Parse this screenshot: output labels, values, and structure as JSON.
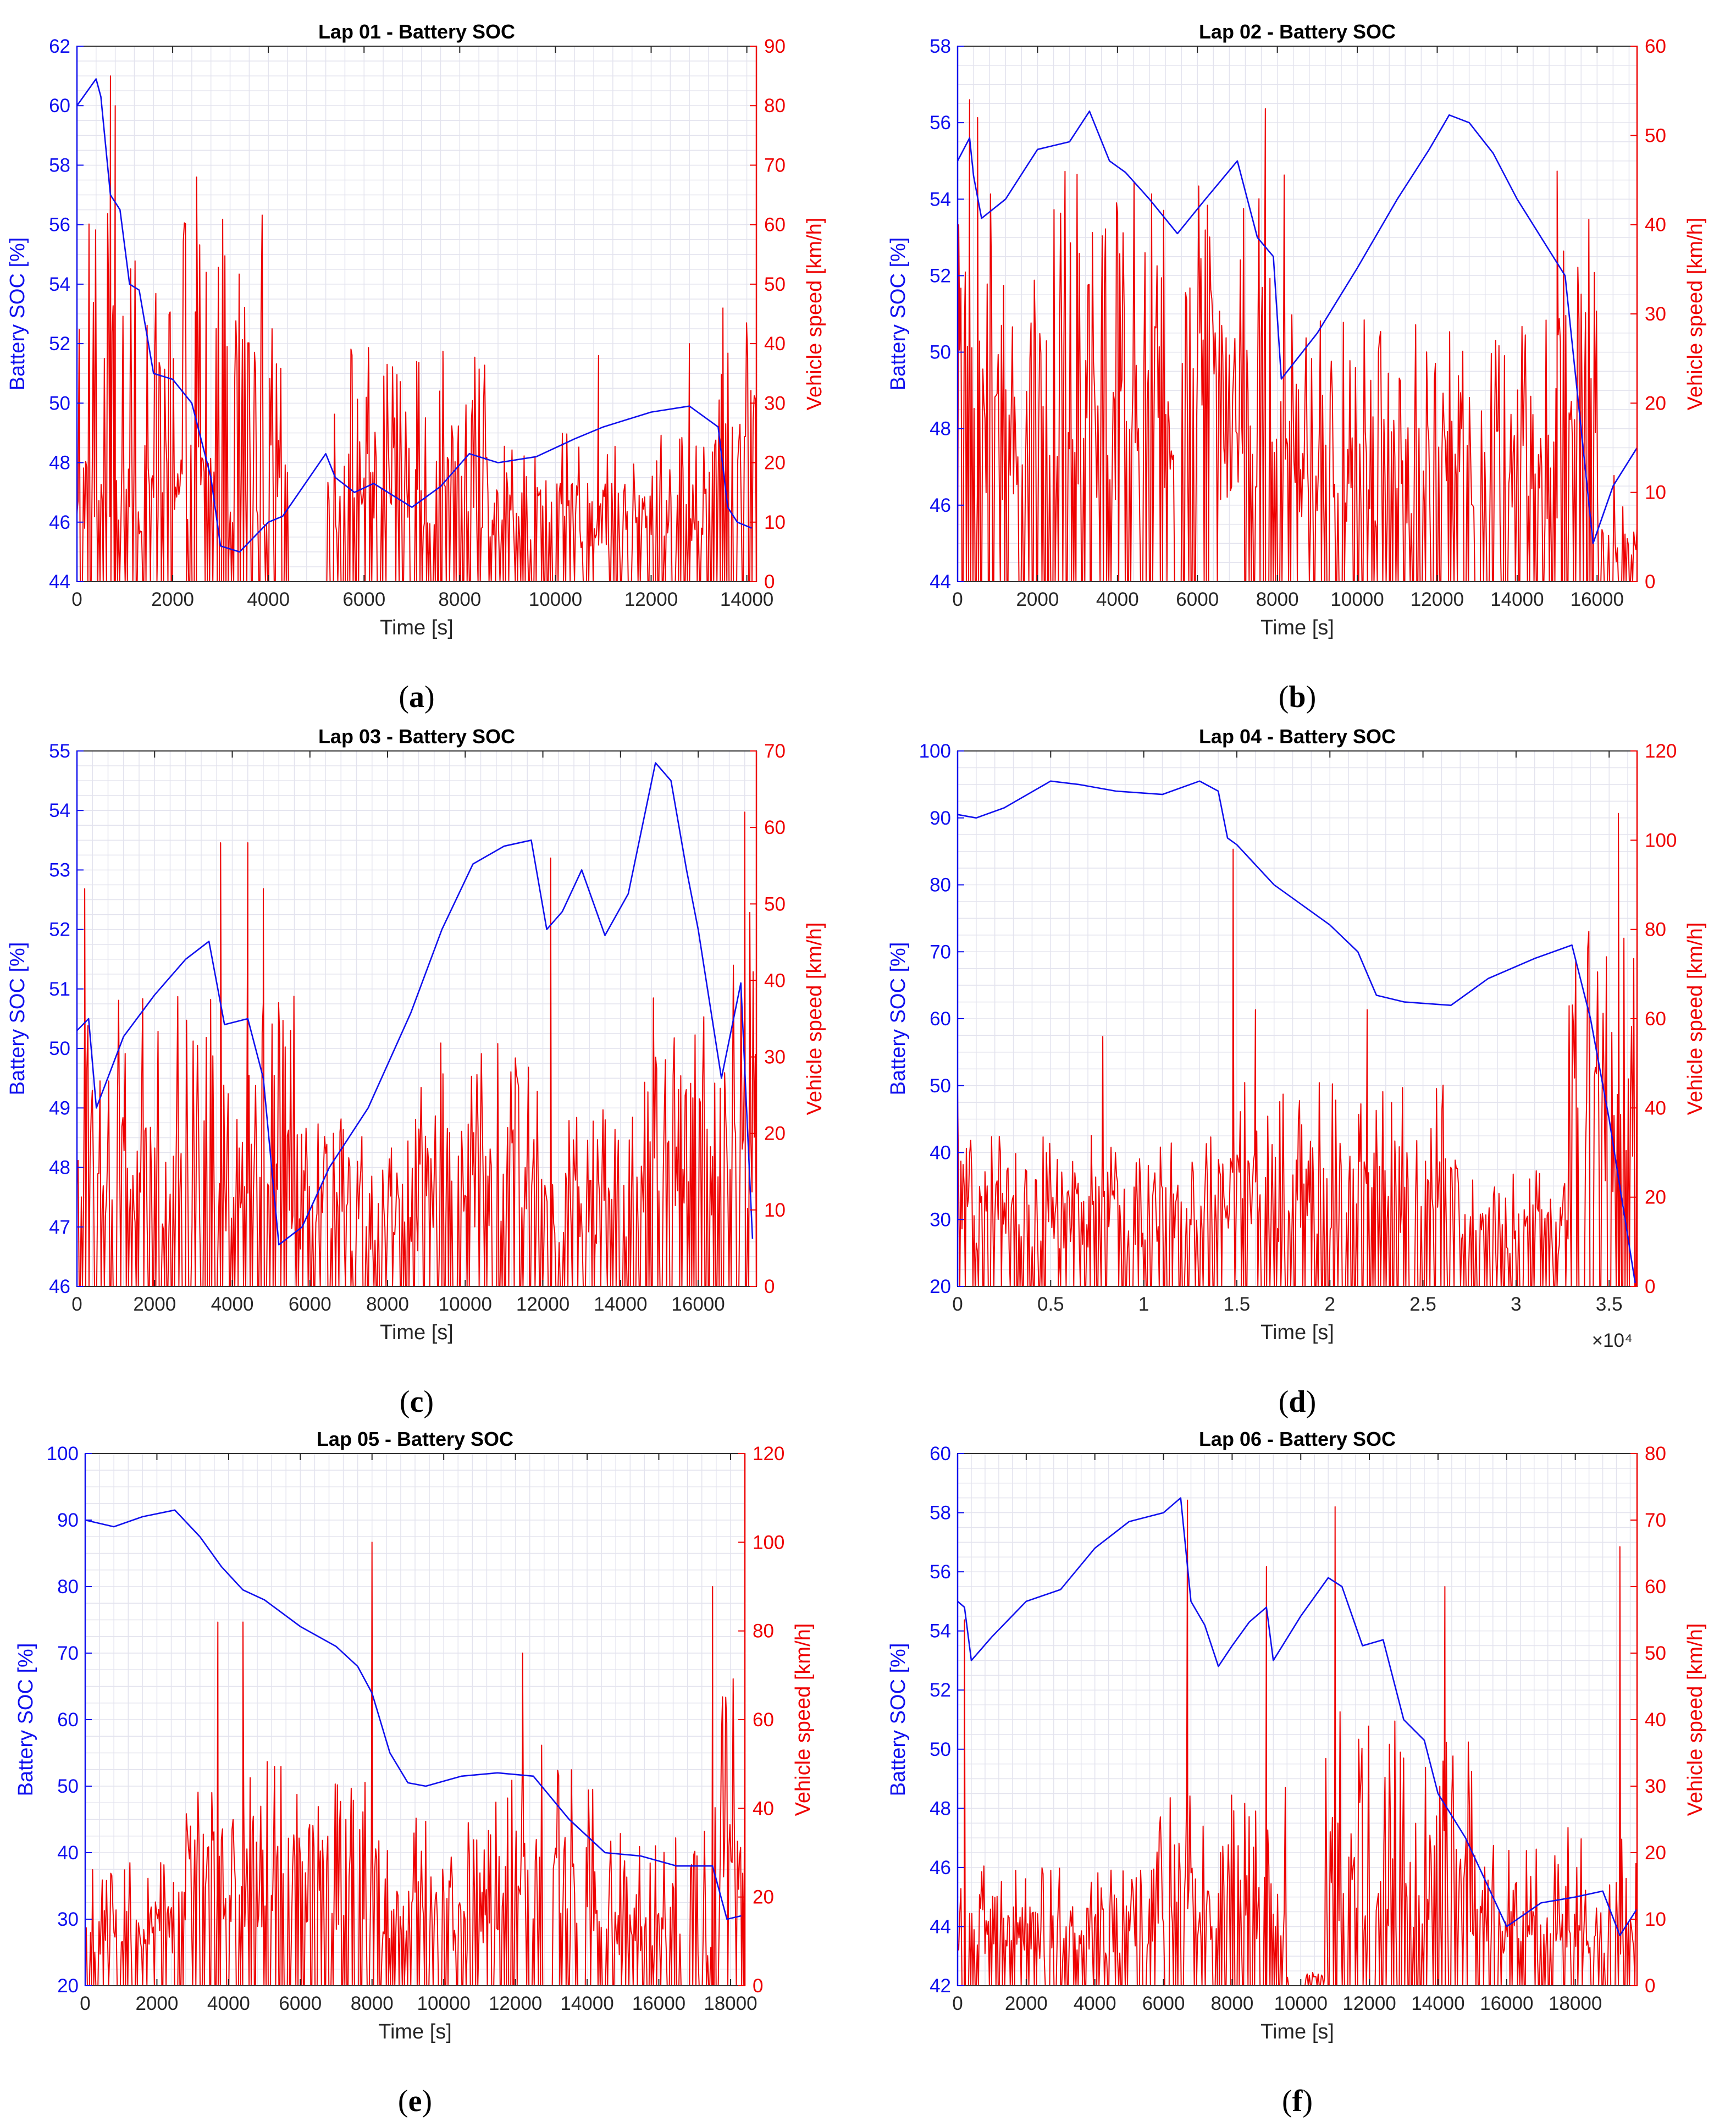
{
  "colors": {
    "soc": "#1010ee",
    "speed": "#ee0000",
    "grid": "#e3e3ee",
    "frame": "#333333"
  },
  "chart_data": [
    {
      "type": "line",
      "label": "a",
      "title": "Lap 01 - Battery SOC",
      "xlabel": "Time [s]",
      "ylabel_left": "Battery SOC [%]",
      "ylabel_right": "Vehicle speed [km/h]",
      "xlim": [
        0,
        14200
      ],
      "ylim_left": [
        44,
        62
      ],
      "ylim_right": [
        0,
        90
      ],
      "xticks": [
        0,
        2000,
        4000,
        6000,
        8000,
        10000,
        12000,
        14000
      ],
      "xtick_labels": [
        "0",
        "2000",
        "4000",
        "6000",
        "8000",
        "10000",
        "12000",
        "14000"
      ],
      "yticks_left": [
        44,
        46,
        48,
        50,
        52,
        54,
        56,
        58,
        60,
        62
      ],
      "yticks_right": [
        0,
        10,
        20,
        30,
        40,
        50,
        60,
        70,
        80,
        90
      ],
      "x_multiplier": "",
      "grid": true,
      "soc": {
        "x": [
          0,
          400,
          500,
          700,
          900,
          1100,
          1300,
          1600,
          2000,
          2400,
          2800,
          3000,
          3400,
          4000,
          4300,
          5200,
          5400,
          5800,
          6200,
          6600,
          7000,
          7600,
          8200,
          8800,
          9600,
          10400,
          11000,
          12000,
          12800,
          13400,
          13600,
          13800,
          14100
        ],
        "y": [
          60.0,
          60.9,
          60.3,
          57.0,
          56.5,
          54.0,
          53.8,
          51.0,
          50.8,
          50.0,
          47.5,
          45.2,
          45.0,
          46.0,
          46.2,
          48.3,
          47.5,
          47.0,
          47.3,
          46.9,
          46.5,
          47.2,
          48.3,
          48.0,
          48.2,
          48.8,
          49.2,
          49.7,
          49.9,
          49.2,
          46.5,
          46.0,
          45.8
        ]
      },
      "speed": {
        "segments": [
          [
            0,
            4400,
            16,
            62
          ],
          [
            5200,
            8700,
            15,
            40
          ],
          [
            8700,
            13300,
            11,
            25
          ],
          [
            13300,
            14200,
            26,
            44
          ]
        ],
        "peaks": [
          [
            700,
            85
          ],
          [
            800,
            80
          ],
          [
            2500,
            68
          ],
          [
            2700,
            52
          ],
          [
            6100,
            35
          ],
          [
            7100,
            37
          ],
          [
            10900,
            38
          ],
          [
            12800,
            40
          ],
          [
            13500,
            46
          ]
        ]
      }
    },
    {
      "type": "line",
      "label": "b",
      "title": "Lap 02 - Battery SOC",
      "xlabel": "Time [s]",
      "ylabel_left": "Battery SOC [%]",
      "ylabel_right": "Vehicle speed [km/h]",
      "xlim": [
        0,
        17000
      ],
      "ylim_left": [
        44,
        58
      ],
      "ylim_right": [
        0,
        60
      ],
      "xticks": [
        0,
        2000,
        4000,
        6000,
        8000,
        10000,
        12000,
        14000,
        16000
      ],
      "xtick_labels": [
        "0",
        "2000",
        "4000",
        "6000",
        "8000",
        "10000",
        "12000",
        "14000",
        "16000"
      ],
      "yticks_left": [
        44,
        46,
        48,
        50,
        52,
        54,
        56,
        58
      ],
      "yticks_right": [
        0,
        10,
        20,
        30,
        40,
        50,
        60
      ],
      "x_multiplier": "",
      "grid": true,
      "soc": {
        "x": [
          0,
          300,
          400,
          600,
          1200,
          2000,
          2800,
          3300,
          3800,
          4200,
          4800,
          5500,
          6200,
          7000,
          7500,
          7900,
          8100,
          9000,
          10000,
          11000,
          11800,
          12300,
          12800,
          13400,
          14000,
          14600,
          15200,
          15900,
          16400,
          17000
        ],
        "y": [
          55.0,
          55.6,
          54.6,
          53.5,
          54.0,
          55.3,
          55.5,
          56.3,
          55.0,
          54.7,
          54.0,
          53.1,
          54.0,
          55.0,
          53.0,
          52.5,
          49.3,
          50.5,
          52.2,
          54.0,
          55.3,
          56.2,
          56.0,
          55.2,
          54.0,
          53.0,
          52.0,
          45.0,
          46.5,
          47.5
        ]
      },
      "speed": {
        "segments": [
          [
            0,
            8200,
            18,
            46
          ],
          [
            8200,
            15000,
            12,
            30
          ],
          [
            15000,
            16000,
            24,
            42
          ],
          [
            16000,
            17000,
            4,
            12
          ]
        ],
        "peaks": [
          [
            300,
            54
          ],
          [
            500,
            52
          ],
          [
            7700,
            53
          ],
          [
            15000,
            46
          ]
        ]
      }
    },
    {
      "type": "line",
      "label": "c",
      "title": "Lap 03 - Battery SOC",
      "xlabel": "Time [s]",
      "ylabel_left": "Battery SOC [%]",
      "ylabel_right": "Vehicle speed [km/h]",
      "xlim": [
        0,
        17500
      ],
      "ylim_left": [
        46,
        55
      ],
      "ylim_right": [
        0,
        70
      ],
      "xticks": [
        0,
        2000,
        4000,
        6000,
        8000,
        10000,
        12000,
        14000,
        16000
      ],
      "xtick_labels": [
        "0",
        "2000",
        "4000",
        "6000",
        "8000",
        "10000",
        "12000",
        "14000",
        "16000"
      ],
      "yticks_left": [
        46,
        47,
        48,
        49,
        50,
        51,
        52,
        53,
        54,
        55
      ],
      "yticks_right": [
        0,
        10,
        20,
        30,
        40,
        50,
        60,
        70
      ],
      "x_multiplier": "",
      "grid": true,
      "soc": {
        "x": [
          0,
          300,
          500,
          1200,
          2000,
          2800,
          3400,
          3800,
          4400,
          4800,
          5200,
          5800,
          6500,
          7500,
          8600,
          9400,
          10200,
          11000,
          11700,
          12100,
          12500,
          13000,
          13600,
          14200,
          14900,
          15300,
          15700,
          16000,
          16600,
          17100,
          17400
        ],
        "y": [
          50.3,
          50.5,
          49.0,
          50.2,
          50.9,
          51.5,
          51.8,
          50.4,
          50.5,
          49.5,
          46.7,
          47.0,
          48.0,
          49.0,
          50.6,
          52.0,
          53.1,
          53.4,
          53.5,
          52.0,
          52.3,
          53.0,
          51.9,
          52.6,
          54.8,
          54.5,
          53.0,
          52.0,
          49.5,
          51.1,
          46.8
        ]
      },
      "speed": {
        "segments": [
          [
            0,
            5600,
            14,
            38
          ],
          [
            5600,
            8800,
            9,
            22
          ],
          [
            8800,
            12000,
            14,
            32
          ],
          [
            12000,
            14600,
            10,
            24
          ],
          [
            14600,
            16200,
            20,
            38
          ],
          [
            16200,
            17500,
            18,
            50
          ]
        ],
        "peaks": [
          [
            200,
            52
          ],
          [
            3700,
            58
          ],
          [
            4400,
            58
          ],
          [
            4800,
            52
          ],
          [
            12200,
            56
          ],
          [
            17200,
            62
          ]
        ]
      }
    },
    {
      "type": "line",
      "label": "d",
      "title": "Lap 04 - Battery SOC",
      "xlabel": "Time [s]",
      "ylabel_left": "Battery SOC [%]",
      "ylabel_right": "Vehicle speed [km/h]",
      "xlim": [
        0,
        36500
      ],
      "ylim_left": [
        20,
        100
      ],
      "ylim_right": [
        0,
        120
      ],
      "xticks": [
        0,
        5000,
        10000,
        15000,
        20000,
        25000,
        30000,
        35000
      ],
      "xtick_labels": [
        "0",
        "0.5",
        "1",
        "1.5",
        "2",
        "2.5",
        "3",
        "3.5"
      ],
      "yticks_left": [
        20,
        30,
        40,
        50,
        60,
        70,
        80,
        90,
        100
      ],
      "yticks_right": [
        0,
        20,
        40,
        60,
        80,
        100,
        120
      ],
      "x_multiplier": "×10⁴",
      "grid": true,
      "soc": {
        "x": [
          0,
          1000,
          2500,
          5000,
          6500,
          8500,
          11000,
          13000,
          14000,
          14500,
          15000,
          17000,
          18500,
          20000,
          21500,
          22500,
          24000,
          26500,
          28500,
          31000,
          33000,
          34000,
          35000,
          36400
        ],
        "y": [
          90.5,
          90.0,
          91.5,
          95.5,
          95.0,
          94.0,
          93.5,
          95.5,
          94.0,
          87.0,
          86.0,
          80.0,
          77.0,
          74.0,
          70.0,
          63.5,
          62.5,
          62.0,
          66.0,
          69.0,
          71.0,
          60.0,
          45.0,
          20.5
        ]
      },
      "speed": {
        "segments": [
          [
            0,
            14000,
            16,
            34
          ],
          [
            14000,
            27000,
            20,
            46
          ],
          [
            27000,
            32800,
            12,
            26
          ],
          [
            32800,
            36500,
            40,
            82
          ]
        ],
        "peaks": [
          [
            0,
            44
          ],
          [
            7800,
            56
          ],
          [
            14800,
            98
          ],
          [
            16000,
            62
          ],
          [
            22000,
            62
          ],
          [
            35500,
            106
          ]
        ]
      }
    },
    {
      "type": "line",
      "label": "e",
      "title": "Lap 05 - Battery SOC",
      "xlabel": "Time [s]",
      "ylabel_left": "Battery SOC [%]",
      "ylabel_right": "Vehicle speed [km/h]",
      "xlim": [
        0,
        18400
      ],
      "ylim_left": [
        20,
        100
      ],
      "ylim_right": [
        0,
        120
      ],
      "xticks": [
        0,
        2000,
        4000,
        6000,
        8000,
        10000,
        12000,
        14000,
        16000,
        18000
      ],
      "xtick_labels": [
        "0",
        "2000",
        "4000",
        "6000",
        "8000",
        "10000",
        "12000",
        "14000",
        "16000",
        "18000"
      ],
      "yticks_left": [
        20,
        30,
        40,
        50,
        60,
        70,
        80,
        90,
        100
      ],
      "yticks_right": [
        0,
        20,
        40,
        60,
        80,
        100,
        120
      ],
      "x_multiplier": "",
      "grid": true,
      "soc": {
        "x": [
          0,
          800,
          1600,
          2500,
          3200,
          3800,
          4400,
          5000,
          6000,
          7000,
          7600,
          8000,
          8500,
          9000,
          9500,
          10500,
          11500,
          12500,
          13500,
          14500,
          15500,
          16500,
          17500,
          17900,
          18300
        ],
        "y": [
          90.0,
          89.0,
          90.5,
          91.5,
          87.5,
          83.0,
          79.5,
          78.0,
          74.0,
          71.0,
          68.0,
          64.0,
          55.0,
          50.5,
          50.0,
          51.5,
          52.0,
          51.5,
          45.0,
          40.0,
          39.5,
          38.0,
          38.0,
          30.0,
          30.5
        ]
      },
      "speed": {
        "segments": [
          [
            0,
            2600,
            12,
            28
          ],
          [
            2600,
            8200,
            25,
            52
          ],
          [
            8200,
            11200,
            15,
            38
          ],
          [
            11200,
            14300,
            24,
            55
          ],
          [
            14300,
            17500,
            12,
            35
          ],
          [
            17500,
            18400,
            30,
            70
          ]
        ],
        "peaks": [
          [
            3700,
            82
          ],
          [
            4400,
            82
          ],
          [
            8000,
            100
          ],
          [
            12200,
            75
          ],
          [
            17500,
            90
          ]
        ]
      }
    },
    {
      "type": "line",
      "label": "f",
      "title": "Lap 06 - Battery SOC",
      "xlabel": "Time [s]",
      "ylabel_left": "Battery SOC [%]",
      "ylabel_right": "Vehicle speed [km/h]",
      "xlim": [
        0,
        19800
      ],
      "ylim_left": [
        42,
        60
      ],
      "ylim_right": [
        0,
        80
      ],
      "xticks": [
        0,
        2000,
        4000,
        6000,
        8000,
        10000,
        12000,
        14000,
        16000,
        18000
      ],
      "xtick_labels": [
        "0",
        "2000",
        "4000",
        "6000",
        "8000",
        "10000",
        "12000",
        "14000",
        "16000",
        "18000"
      ],
      "yticks_left": [
        42,
        44,
        46,
        48,
        50,
        52,
        54,
        56,
        58,
        60
      ],
      "yticks_right": [
        0,
        10,
        20,
        30,
        40,
        50,
        60,
        70,
        80
      ],
      "x_multiplier": "",
      "grid": true,
      "soc": {
        "x": [
          0,
          200,
          400,
          1000,
          2000,
          3000,
          4000,
          5000,
          6000,
          6500,
          6800,
          7200,
          7600,
          8000,
          8500,
          9000,
          9200,
          10000,
          10800,
          11200,
          11800,
          12400,
          13000,
          13600,
          14000,
          14800,
          16000,
          17000,
          18000,
          18800,
          19300,
          19800
        ],
        "y": [
          55.0,
          54.8,
          53.0,
          53.8,
          55.0,
          55.4,
          56.8,
          57.7,
          58.0,
          58.5,
          55.0,
          54.2,
          52.8,
          53.5,
          54.3,
          54.8,
          53.0,
          54.5,
          55.8,
          55.5,
          53.5,
          53.7,
          51.0,
          50.3,
          48.5,
          47.0,
          44.0,
          44.8,
          45.0,
          45.2,
          43.7,
          44.6
        ]
      },
      "speed": {
        "segments": [
          [
            0,
            5800,
            8,
            18
          ],
          [
            5800,
            9600,
            12,
            32
          ],
          [
            9600,
            10700,
            0,
            2
          ],
          [
            10700,
            15000,
            16,
            42
          ],
          [
            15000,
            19800,
            8,
            24
          ]
        ],
        "peaks": [
          [
            200,
            55
          ],
          [
            6700,
            73
          ],
          [
            9000,
            63
          ],
          [
            11000,
            72
          ],
          [
            14200,
            60
          ],
          [
            19300,
            66
          ]
        ]
      }
    }
  ]
}
